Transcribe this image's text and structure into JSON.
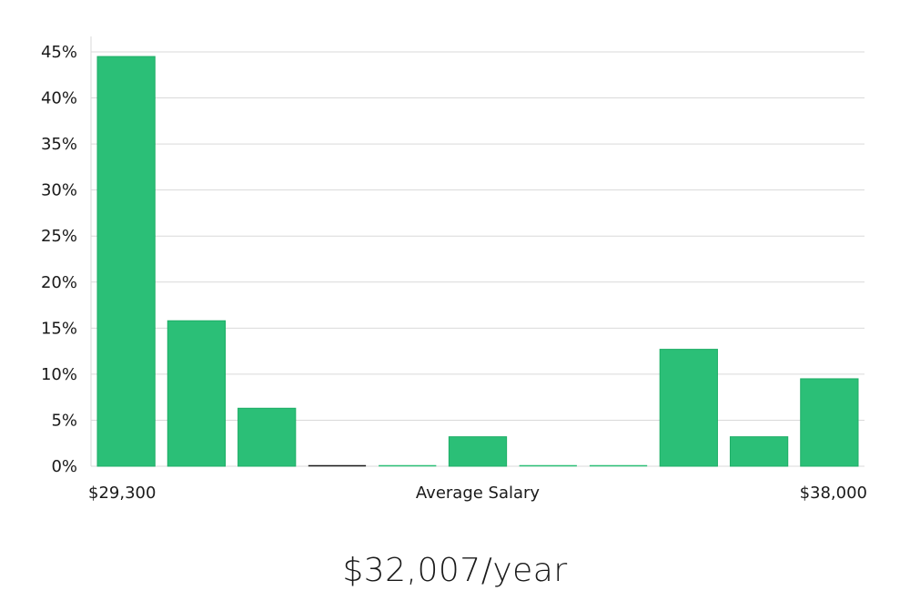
{
  "chart_data": {
    "type": "bar",
    "title": "",
    "xlabel": "Average Salary",
    "ylabel": "",
    "x_min_label": "$29,300",
    "x_max_label": "$38,000",
    "ylim": [
      0,
      45
    ],
    "yticks": [
      0,
      5,
      10,
      15,
      20,
      25,
      30,
      35,
      40,
      45
    ],
    "ytick_labels": [
      "0%",
      "5%",
      "10%",
      "15%",
      "20%",
      "25%",
      "30%",
      "35%",
      "40%",
      "45%"
    ],
    "grid": true,
    "values": [
      44.5,
      15.8,
      6.3,
      0,
      0,
      3.2,
      0,
      0,
      12.7,
      3.2,
      9.5
    ],
    "bar_color": "#2bbf77",
    "bar_edge_color": "#1fae67",
    "zero_bar_color": "#1a1a1a"
  },
  "summary": {
    "average_salary": "$32,007/year"
  }
}
